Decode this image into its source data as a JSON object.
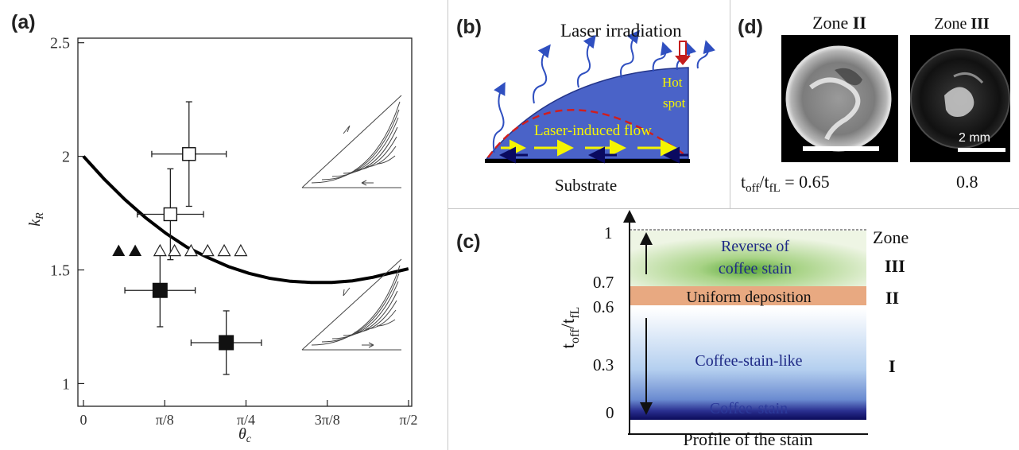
{
  "panel_labels": {
    "a": "(a)",
    "b": "(b)",
    "c": "(c)",
    "d": "(d)"
  },
  "colors": {
    "drop_blue": "#4a63c8",
    "arrow_yellow": "#f5f500",
    "laser_red": "#d11b1b",
    "stain_orange": "#e8a981",
    "stain_navy": "#13136e"
  },
  "chart_data": {
    "type": "scatter",
    "xlabel": "θc",
    "ylabel": "kR",
    "xlim": [
      0,
      1.5708
    ],
    "ylim": [
      0.9,
      2.52
    ],
    "x_ticks": [
      {
        "value": 0,
        "label": "0"
      },
      {
        "value": 0.3927,
        "label": "π/8"
      },
      {
        "value": 0.7854,
        "label": "π/4"
      },
      {
        "value": 1.1781,
        "label": "3π/8"
      },
      {
        "value": 1.5708,
        "label": "π/2"
      }
    ],
    "y_ticks": [
      {
        "value": 1,
        "label": "1"
      },
      {
        "value": 1.5,
        "label": "1.5"
      },
      {
        "value": 2,
        "label": "2"
      },
      {
        "value": 2.5,
        "label": "2.5"
      }
    ],
    "curve": {
      "x": [
        0,
        0.1,
        0.2,
        0.3,
        0.4,
        0.5,
        0.6,
        0.7,
        0.8,
        0.9,
        1.0,
        1.1,
        1.2,
        1.3,
        1.4,
        1.5,
        1.57
      ],
      "y": [
        2.0,
        1.9,
        1.81,
        1.73,
        1.66,
        1.6,
        1.555,
        1.515,
        1.485,
        1.463,
        1.45,
        1.445,
        1.445,
        1.452,
        1.468,
        1.49,
        1.505
      ]
    },
    "open_squares": [
      {
        "x": 0.51,
        "y": 2.01,
        "xerr": 0.18,
        "yerr": 0.23
      },
      {
        "x": 0.42,
        "y": 1.745,
        "xerr": 0.16,
        "yerr": 0.2
      }
    ],
    "filled_squares": [
      {
        "x": 0.37,
        "y": 1.41,
        "xerr": 0.17,
        "yerr": 0.16
      },
      {
        "x": 0.69,
        "y": 1.18,
        "xerr": 0.17,
        "yerr": 0.14
      }
    ],
    "filled_triangles": [
      {
        "x": 0.17,
        "y": 1.585
      },
      {
        "x": 0.25,
        "y": 1.585
      }
    ],
    "open_triangles": [
      {
        "x": 0.37,
        "y": 1.585
      },
      {
        "x": 0.44,
        "y": 1.585
      },
      {
        "x": 0.52,
        "y": 1.585
      },
      {
        "x": 0.6,
        "y": 1.585
      },
      {
        "x": 0.68,
        "y": 1.585
      },
      {
        "x": 0.76,
        "y": 1.585
      }
    ]
  },
  "panel_b": {
    "laser_label": "Laser irradiation",
    "hot_spot_lines": [
      "Hot",
      "spot"
    ],
    "flow_label": "Laser-induced flow",
    "substrate_label": "Substrate"
  },
  "panel_d": {
    "zone2_prefix": "Zone ",
    "zone2_numeral": "II",
    "zone3_prefix": "Zone ",
    "zone3_numeral": "III",
    "scale_label": "2 mm",
    "ratio_t": "t",
    "ratio_sub1": "off",
    "ratio_slash": "/t",
    "ratio_sub2": "fL",
    "ratio_value": " = 0.65",
    "second_value": "0.8"
  },
  "panel_c": {
    "y_axis_t": "t",
    "y_axis_sub1": "off",
    "y_axis_slash": "/t",
    "y_axis_sub2": "fL",
    "y_ticks": [
      "1",
      "0.7",
      "0.6",
      "0.3",
      "0"
    ],
    "x_axis_label": "Profile of the stain",
    "zone_header": "Zone",
    "band3_line1": "Reverse of",
    "band3_line2": "coffee stain",
    "band2_text": "Uniform deposition",
    "band1_text": "Coffee-stain-like",
    "band0_text": "Coffee-stain",
    "zone_numerals": [
      "III",
      "II",
      "I"
    ]
  }
}
